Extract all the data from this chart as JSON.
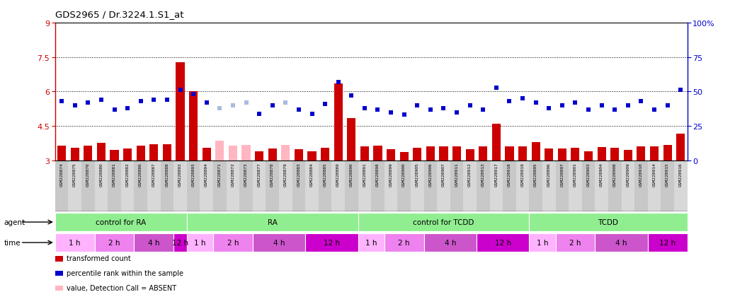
{
  "title": "GDS2965 / Dr.3224.1.S1_at",
  "samples": [
    "GSM228874",
    "GSM228875",
    "GSM228876",
    "GSM228880",
    "GSM228881",
    "GSM228882",
    "GSM228886",
    "GSM228887",
    "GSM228888",
    "GSM228892",
    "GSM228893",
    "GSM228894",
    "GSM228871",
    "GSM228872",
    "GSM228873",
    "GSM228877",
    "GSM228878",
    "GSM228879",
    "GSM228883",
    "GSM228884",
    "GSM228885",
    "GSM228889",
    "GSM228890",
    "GSM228891",
    "GSM228898",
    "GSM228899",
    "GSM228900",
    "GSM228905",
    "GSM228906",
    "GSM228907",
    "GSM228911",
    "GSM228912",
    "GSM228913",
    "GSM228917",
    "GSM228918",
    "GSM228919",
    "GSM228895",
    "GSM228896",
    "GSM228897",
    "GSM228901",
    "GSM228903",
    "GSM228904",
    "GSM228908",
    "GSM228909",
    "GSM228910",
    "GSM228914",
    "GSM228915",
    "GSM228916"
  ],
  "bar_values": [
    3.65,
    3.55,
    3.63,
    3.75,
    3.45,
    3.5,
    3.65,
    3.7,
    3.7,
    7.27,
    6.0,
    3.55,
    3.85,
    3.65,
    3.68,
    3.4,
    3.5,
    3.68,
    3.47,
    3.4,
    3.55,
    6.35,
    4.85,
    3.6,
    3.65,
    3.48,
    3.35,
    3.55,
    3.62,
    3.62,
    3.6,
    3.48,
    3.6,
    4.58,
    3.62,
    3.62,
    3.8,
    3.52,
    3.52,
    3.55,
    3.4,
    3.58,
    3.55,
    3.45,
    3.6,
    3.6,
    3.68,
    4.15
  ],
  "rank_values_pct": [
    43,
    40,
    42,
    44,
    37,
    38,
    43,
    44,
    44,
    51,
    48,
    42,
    38,
    40,
    42,
    34,
    40,
    42,
    37,
    34,
    41,
    57,
    47,
    38,
    37,
    35,
    33,
    40,
    37,
    38,
    35,
    40,
    37,
    53,
    43,
    45,
    42,
    38,
    40,
    42,
    37,
    40,
    37,
    40,
    43,
    37,
    40,
    51
  ],
  "absent_bar": [
    false,
    false,
    false,
    false,
    false,
    false,
    false,
    false,
    false,
    false,
    false,
    false,
    true,
    true,
    true,
    false,
    false,
    true,
    false,
    false,
    false,
    false,
    false,
    false,
    false,
    false,
    false,
    false,
    false,
    false,
    false,
    false,
    false,
    false,
    false,
    false,
    false,
    false,
    false,
    false,
    false,
    false,
    false,
    false,
    false,
    false,
    false,
    false
  ],
  "absent_rank": [
    false,
    false,
    false,
    false,
    false,
    false,
    false,
    false,
    false,
    false,
    false,
    false,
    true,
    true,
    true,
    false,
    false,
    true,
    false,
    false,
    false,
    false,
    false,
    false,
    false,
    false,
    false,
    false,
    false,
    false,
    false,
    false,
    false,
    false,
    false,
    false,
    false,
    false,
    false,
    false,
    false,
    false,
    false,
    false,
    false,
    false,
    false,
    false
  ],
  "groups": [
    {
      "label": "control for RA",
      "start": 0,
      "end": 10
    },
    {
      "label": "RA",
      "start": 10,
      "end": 23
    },
    {
      "label": "control for TCDD",
      "start": 23,
      "end": 36
    },
    {
      "label": "TCDD",
      "start": 36,
      "end": 48
    }
  ],
  "time_groups": [
    {
      "label": "1 h",
      "start": 0,
      "end": 3,
      "color": "#FFB3FF"
    },
    {
      "label": "2 h",
      "start": 3,
      "end": 6,
      "color": "#EE82EE"
    },
    {
      "label": "4 h",
      "start": 6,
      "end": 9,
      "color": "#CC55CC"
    },
    {
      "label": "12 h",
      "start": 9,
      "end": 10,
      "color": "#CC00CC"
    },
    {
      "label": "1 h",
      "start": 10,
      "end": 12,
      "color": "#FFB3FF"
    },
    {
      "label": "2 h",
      "start": 12,
      "end": 15,
      "color": "#EE82EE"
    },
    {
      "label": "4 h",
      "start": 15,
      "end": 19,
      "color": "#CC55CC"
    },
    {
      "label": "12 h",
      "start": 19,
      "end": 23,
      "color": "#CC00CC"
    },
    {
      "label": "1 h",
      "start": 23,
      "end": 25,
      "color": "#FFB3FF"
    },
    {
      "label": "2 h",
      "start": 25,
      "end": 28,
      "color": "#EE82EE"
    },
    {
      "label": "4 h",
      "start": 28,
      "end": 32,
      "color": "#CC55CC"
    },
    {
      "label": "12 h",
      "start": 32,
      "end": 36,
      "color": "#CC00CC"
    },
    {
      "label": "1 h",
      "start": 36,
      "end": 38,
      "color": "#FFB3FF"
    },
    {
      "label": "2 h",
      "start": 38,
      "end": 41,
      "color": "#EE82EE"
    },
    {
      "label": "4 h",
      "start": 41,
      "end": 45,
      "color": "#CC55CC"
    },
    {
      "label": "12 h",
      "start": 45,
      "end": 48,
      "color": "#CC00CC"
    }
  ],
  "ylim_left": [
    3.0,
    9.0
  ],
  "ylim_right": [
    0,
    100
  ],
  "yticks_left": [
    3.0,
    4.5,
    6.0,
    7.5,
    9.0
  ],
  "yticks_right": [
    0,
    25,
    50,
    75,
    100
  ],
  "bar_color": "#CC0000",
  "bar_absent_color": "#FFB6C1",
  "rank_color": "#0000CC",
  "rank_absent_color": "#AABBDD",
  "dotted_lines": [
    4.5,
    6.0,
    7.5
  ],
  "group_color": "#90EE90",
  "legend_items": [
    {
      "label": "transformed count",
      "color": "#CC0000"
    },
    {
      "label": "percentile rank within the sample",
      "color": "#0000CC"
    },
    {
      "label": "value, Detection Call = ABSENT",
      "color": "#FFB6C1"
    },
    {
      "label": "rank, Detection Call = ABSENT",
      "color": "#AABBDD"
    }
  ]
}
